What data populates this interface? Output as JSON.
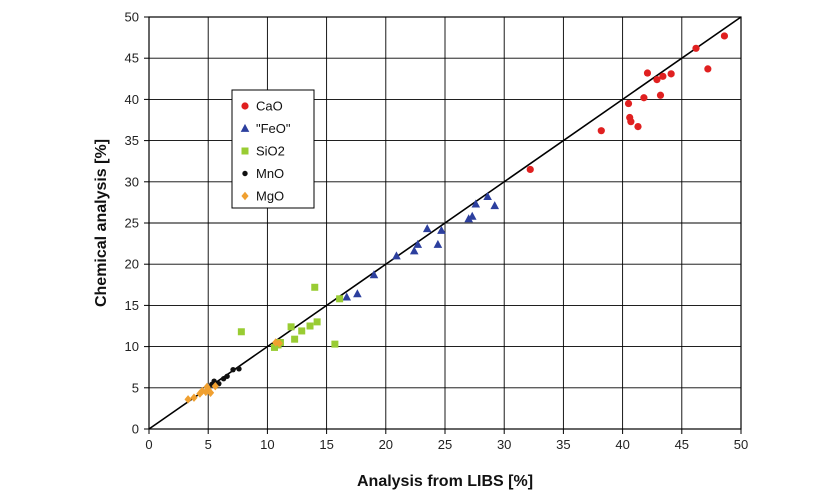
{
  "chart_data": {
    "type": "scatter",
    "title": "",
    "xlabel": "Analysis from LIBS [%]",
    "ylabel": "Chemical analysis [%]",
    "xlim": [
      0,
      50
    ],
    "ylim": [
      0,
      50
    ],
    "xticks": [
      0,
      5,
      10,
      15,
      20,
      25,
      30,
      35,
      40,
      45,
      50
    ],
    "yticks": [
      0,
      5,
      10,
      15,
      20,
      25,
      30,
      35,
      40,
      45,
      50
    ],
    "grid": true,
    "legend_position": "upper-left inside plot",
    "reference_line": {
      "name": "y = x",
      "from": [
        0,
        0
      ],
      "to": [
        50,
        50
      ],
      "color": "#000000"
    },
    "series": [
      {
        "name": "CaO",
        "marker": "circle",
        "color": "#e02020",
        "points": [
          [
            32.2,
            31.5
          ],
          [
            38.2,
            36.2
          ],
          [
            40.5,
            39.5
          ],
          [
            40.6,
            37.8
          ],
          [
            40.7,
            37.3
          ],
          [
            41.3,
            36.7
          ],
          [
            41.8,
            40.2
          ],
          [
            42.1,
            43.2
          ],
          [
            42.9,
            42.4
          ],
          [
            43.2,
            40.5
          ],
          [
            43.4,
            42.8
          ],
          [
            44.1,
            43.1
          ],
          [
            46.2,
            46.2
          ],
          [
            47.2,
            43.7
          ],
          [
            48.6,
            47.7
          ]
        ]
      },
      {
        "name": "\"FeO\"",
        "marker": "triangle",
        "color": "#2c3f9e",
        "points": [
          [
            16.7,
            16.0
          ],
          [
            17.6,
            16.4
          ],
          [
            19.0,
            18.7
          ],
          [
            20.9,
            21.0
          ],
          [
            22.4,
            21.6
          ],
          [
            22.7,
            22.4
          ],
          [
            23.5,
            24.3
          ],
          [
            24.4,
            22.4
          ],
          [
            24.7,
            24.1
          ],
          [
            27.0,
            25.5
          ],
          [
            27.3,
            25.8
          ],
          [
            27.6,
            27.3
          ],
          [
            28.6,
            28.2
          ],
          [
            29.2,
            27.1
          ]
        ]
      },
      {
        "name": "SiO2",
        "marker": "square",
        "color": "#99cc33",
        "points": [
          [
            7.8,
            11.8
          ],
          [
            10.6,
            9.9
          ],
          [
            10.9,
            10.2
          ],
          [
            11.1,
            10.5
          ],
          [
            12.0,
            12.4
          ],
          [
            12.3,
            10.9
          ],
          [
            12.9,
            11.9
          ],
          [
            13.6,
            12.5
          ],
          [
            14.0,
            17.2
          ],
          [
            14.2,
            13.0
          ],
          [
            15.7,
            10.3
          ],
          [
            16.1,
            15.8
          ]
        ]
      },
      {
        "name": "MnO",
        "marker": "dot",
        "color": "#111111",
        "points": [
          [
            5.3,
            5.4
          ],
          [
            5.5,
            5.8
          ],
          [
            5.9,
            5.5
          ],
          [
            6.3,
            6.1
          ],
          [
            6.6,
            6.4
          ],
          [
            7.1,
            7.2
          ],
          [
            7.6,
            7.3
          ]
        ]
      },
      {
        "name": "MgO",
        "marker": "diamond",
        "color": "#f0a030",
        "points": [
          [
            3.3,
            3.6
          ],
          [
            3.8,
            3.8
          ],
          [
            4.3,
            4.3
          ],
          [
            4.5,
            4.6
          ],
          [
            4.8,
            4.5
          ],
          [
            4.9,
            5.1
          ],
          [
            5.0,
            4.8
          ],
          [
            5.2,
            4.4
          ],
          [
            5.6,
            5.2
          ],
          [
            10.7,
            10.5
          ],
          [
            11.0,
            10.4
          ]
        ]
      }
    ]
  }
}
